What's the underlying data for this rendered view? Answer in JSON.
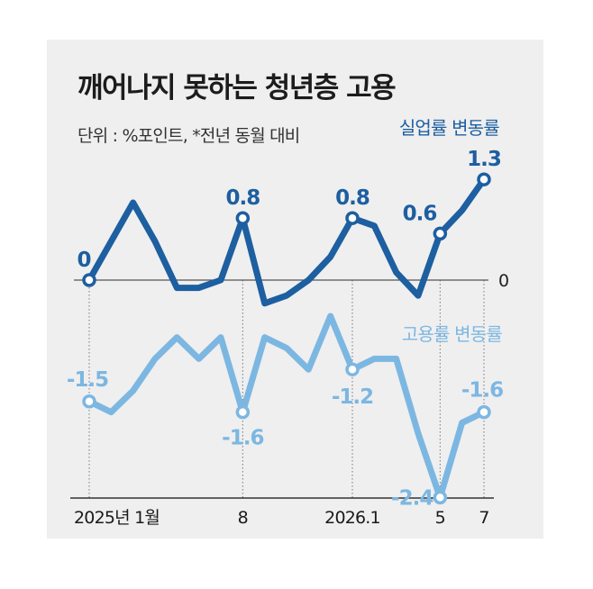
{
  "header": {
    "title": "깨어나지 못하는 청년층 고용",
    "subtitle": "단위 : %포인트, *전년 동월 대비"
  },
  "colors": {
    "unemployment": "#1d5fa0",
    "employment": "#7cb7e2",
    "panel": "#efefef",
    "title": "#1c1c1c"
  },
  "chart_data": {
    "type": "line",
    "x": [
      "2025.1",
      "2025.2",
      "2025.3",
      "2025.4",
      "2025.5",
      "2025.6",
      "2025.7",
      "2025.8",
      "2025.9",
      "2025.10",
      "2025.11",
      "2025.12",
      "2026.1",
      "2026.2",
      "2026.3",
      "2026.4",
      "2026.5",
      "2026.6",
      "2026.7"
    ],
    "x_tick_labels": [
      {
        "index": 0,
        "label": "2025년 1월"
      },
      {
        "index": 7,
        "label": "8"
      },
      {
        "index": 12,
        "label": "2026.1"
      },
      {
        "index": 16,
        "label": "5"
      },
      {
        "index": 18,
        "label": "7"
      }
    ],
    "zero_label": "0",
    "grid": false,
    "series": [
      {
        "name": "실업률 변동률",
        "color": "#1d5fa0",
        "values": [
          0,
          0.5,
          1.0,
          0.5,
          -0.1,
          -0.1,
          0.0,
          0.8,
          -0.3,
          -0.2,
          0.0,
          0.3,
          0.8,
          0.7,
          0.1,
          -0.2,
          0.6,
          0.9,
          1.3
        ],
        "labeled_points": [
          {
            "index": 0,
            "label": "0"
          },
          {
            "index": 7,
            "label": "0.8"
          },
          {
            "index": 12,
            "label": "0.8"
          },
          {
            "index": 16,
            "label": "0.6"
          },
          {
            "index": 18,
            "label": "1.3"
          }
        ]
      },
      {
        "name": "고용률 변동률",
        "color": "#7cb7e2",
        "values": [
          -1.5,
          -1.6,
          -1.4,
          -1.1,
          -0.9,
          -1.1,
          -0.9,
          -1.6,
          -0.9,
          -1.0,
          -1.2,
          -0.7,
          -1.2,
          -1.1,
          -1.1,
          -1.8,
          -2.4,
          -1.7,
          -1.6
        ],
        "labeled_points": [
          {
            "index": 0,
            "label": "-1.5"
          },
          {
            "index": 7,
            "label": "-1.6"
          },
          {
            "index": 12,
            "label": "-1.2"
          },
          {
            "index": 16,
            "label": "-2.4"
          },
          {
            "index": 18,
            "label": "-1.6"
          }
        ]
      }
    ]
  }
}
